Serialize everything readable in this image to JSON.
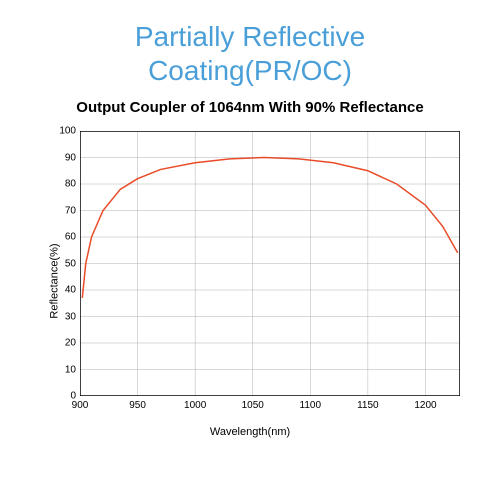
{
  "title_line1": "Partially Reflective",
  "title_line2": "Coating(PR/OC)",
  "subtitle": "Output Coupler of 1064nm With 90% Reflectance",
  "ylabel": "Reflectance(%)",
  "xlabel": "Wavelength(nm)",
  "chart": {
    "type": "line",
    "xlim": [
      900,
      1230
    ],
    "ylim": [
      0,
      100
    ],
    "xtick_step": 50,
    "ytick_step": 10,
    "xticks": [
      900,
      950,
      1000,
      1050,
      1100,
      1150,
      1200
    ],
    "yticks": [
      0,
      10,
      20,
      30,
      40,
      50,
      60,
      70,
      80,
      90,
      100
    ],
    "line_color": "#e84c28",
    "line_width": 1.5,
    "grid_color": "#b0b0b0",
    "grid_width": 0.5,
    "border_color": "#000000",
    "border_width": 1.5,
    "background_color": "#ffffff",
    "tick_fontsize": 10,
    "label_fontsize": 11,
    "title_color": "#4a9fd8",
    "title_fontsize": 28,
    "subtitle_fontsize": 15,
    "data": [
      {
        "x": 902,
        "y": 37
      },
      {
        "x": 905,
        "y": 50
      },
      {
        "x": 910,
        "y": 60
      },
      {
        "x": 920,
        "y": 70
      },
      {
        "x": 935,
        "y": 78
      },
      {
        "x": 950,
        "y": 82
      },
      {
        "x": 970,
        "y": 85.5
      },
      {
        "x": 1000,
        "y": 88
      },
      {
        "x": 1030,
        "y": 89.5
      },
      {
        "x": 1060,
        "y": 90
      },
      {
        "x": 1090,
        "y": 89.5
      },
      {
        "x": 1120,
        "y": 88
      },
      {
        "x": 1150,
        "y": 85
      },
      {
        "x": 1175,
        "y": 80
      },
      {
        "x": 1200,
        "y": 72
      },
      {
        "x": 1215,
        "y": 64
      },
      {
        "x": 1228,
        "y": 54
      }
    ]
  }
}
